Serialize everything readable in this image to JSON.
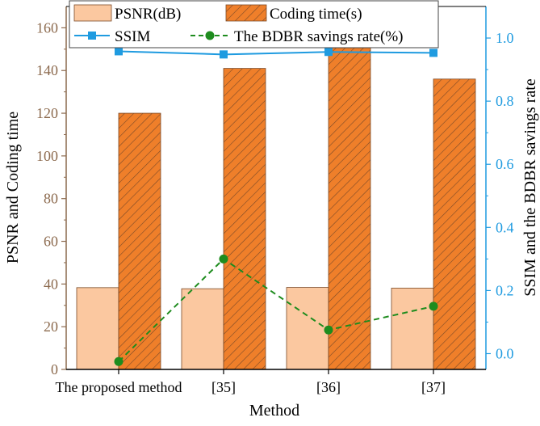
{
  "chart_data": {
    "type": "bar",
    "title": "",
    "xlabel": "Method",
    "ylabel": "PSNR and Coding time",
    "y2label": "SSIM and the BDBR savings rate",
    "categories": [
      "The proposed method",
      "[35]",
      "[36]",
      "[37]"
    ],
    "ylim": [
      0,
      170
    ],
    "y2lim": [
      -0.05,
      1.1
    ],
    "yticks": [
      0,
      20,
      40,
      60,
      80,
      100,
      120,
      140,
      160
    ],
    "y2ticks": [
      "0.0",
      "0.2",
      "0.4",
      "0.6",
      "0.8",
      "1.0"
    ],
    "series": [
      {
        "name": "PSNR(dB)",
        "kind": "bar",
        "axis": "left",
        "color": "#fbc8a0",
        "values": [
          38.3,
          37.8,
          38.4,
          38.1
        ]
      },
      {
        "name": "Coding time(s)",
        "kind": "bar-hatched",
        "axis": "left",
        "color": "#ef7f2a",
        "values": [
          120,
          141,
          157,
          136
        ]
      },
      {
        "name": "SSIM",
        "kind": "line",
        "axis": "right",
        "color": "#1f9be0",
        "values": [
          0.958,
          0.948,
          0.956,
          0.953
        ]
      },
      {
        "name": "The BDBR savings rate(%)",
        "kind": "dashed-line",
        "axis": "right",
        "color": "#1e8c1e",
        "values": [
          -0.025,
          0.3,
          0.075,
          0.15
        ]
      }
    ],
    "legend": "top"
  },
  "colors": {
    "left_axis": "#8c6a4e",
    "right_axis": "#1f9be0",
    "bar_edge": "#7a4a28"
  }
}
